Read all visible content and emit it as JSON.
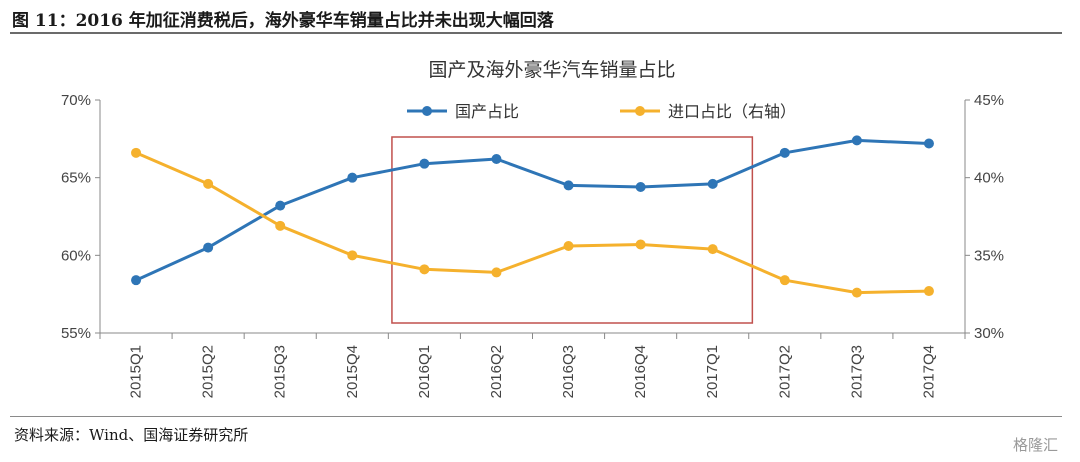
{
  "figure": {
    "title": "图 11：2016 年加征消费税后，海外豪华车销量占比并未出现大幅回落",
    "source": "资料来源：Wind、国海证券研究所",
    "watermark": "格隆汇"
  },
  "chart_data": {
    "type": "line",
    "title": "国产及海外豪华汽车销量占比",
    "categories": [
      "2015Q1",
      "2015Q2",
      "2015Q3",
      "2015Q4",
      "2016Q1",
      "2016Q2",
      "2016Q3",
      "2016Q4",
      "2017Q1",
      "2017Q2",
      "2017Q3",
      "2017Q4"
    ],
    "series": [
      {
        "name": "国产占比",
        "axis": "left",
        "color": "#2E75B6",
        "values": [
          58.4,
          60.5,
          63.2,
          65.0,
          65.9,
          66.2,
          64.5,
          64.4,
          64.6,
          66.6,
          67.4,
          67.2
        ]
      },
      {
        "name": "进口占比（右轴）",
        "axis": "right",
        "color": "#F5B12D",
        "values": [
          41.6,
          39.6,
          36.9,
          35.0,
          34.1,
          33.9,
          35.6,
          35.7,
          35.4,
          33.4,
          32.6,
          32.7
        ]
      }
    ],
    "y_left": {
      "min": 55,
      "max": 70,
      "ticks": [
        "55%",
        "60%",
        "65%",
        "70%"
      ]
    },
    "y_right": {
      "min": 30,
      "max": 45,
      "ticks": [
        "30%",
        "35%",
        "40%",
        "45%"
      ]
    },
    "highlight": {
      "from": "2016Q1",
      "to": "2017Q1",
      "color": "#C0504D"
    },
    "grid": false,
    "legend_position": "top-center"
  }
}
